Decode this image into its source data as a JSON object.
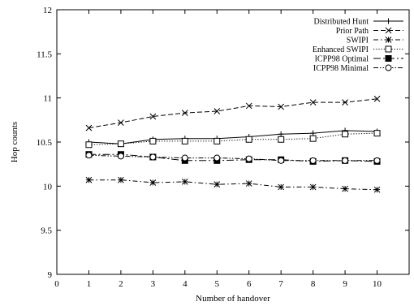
{
  "chart_data": {
    "type": "line",
    "title": "",
    "xlabel": "Number of handover",
    "ylabel": "Hop counts",
    "xlim": [
      0,
      11
    ],
    "ylim": [
      9,
      12
    ],
    "xticks": [
      0,
      1,
      2,
      3,
      4,
      5,
      6,
      7,
      8,
      9,
      10
    ],
    "yticks": [
      9,
      9.5,
      10,
      10.5,
      11,
      11.5,
      12
    ],
    "xtick_labels": [
      "0",
      "1",
      "2",
      "3",
      "4",
      "5",
      "6",
      "7",
      "8",
      "9",
      "10"
    ],
    "ytick_labels": [
      "9",
      "9.5",
      "10",
      "10.5",
      "11",
      "11.5",
      "12"
    ],
    "grid": false,
    "legend_position": "top-right",
    "x": [
      1,
      2,
      3,
      4,
      5,
      6,
      7,
      8,
      9,
      10
    ],
    "series": [
      {
        "name": "Distributed Hunt",
        "marker": "plus",
        "dash": "solid",
        "values": [
          10.5,
          10.48,
          10.53,
          10.54,
          10.54,
          10.56,
          10.59,
          10.6,
          10.63,
          10.62
        ]
      },
      {
        "name": "Prior Path",
        "marker": "cross",
        "dash": "dashed",
        "values": [
          10.66,
          10.72,
          10.79,
          10.83,
          10.85,
          10.91,
          10.9,
          10.95,
          10.95,
          10.99
        ]
      },
      {
        "name": "SWIPI",
        "marker": "star",
        "dash": "dashdot",
        "values": [
          10.07,
          10.07,
          10.04,
          10.05,
          10.02,
          10.03,
          9.99,
          9.99,
          9.97,
          9.96
        ]
      },
      {
        "name": "Enhanced SWIPI",
        "marker": "open-square",
        "dash": "dotted",
        "values": [
          10.47,
          10.48,
          10.51,
          10.51,
          10.51,
          10.53,
          10.53,
          10.54,
          10.59,
          10.6
        ]
      },
      {
        "name": "ICPP98 Optimal",
        "marker": "filled-square",
        "dash": "longdash",
        "values": [
          10.36,
          10.36,
          10.33,
          10.29,
          10.29,
          10.3,
          10.3,
          10.28,
          10.29,
          10.28
        ]
      },
      {
        "name": "ICPP98 Minimal",
        "marker": "open-circle",
        "dash": "dashdotdot",
        "values": [
          10.35,
          10.34,
          10.33,
          10.32,
          10.32,
          10.31,
          10.29,
          10.29,
          10.29,
          10.29
        ]
      }
    ]
  }
}
